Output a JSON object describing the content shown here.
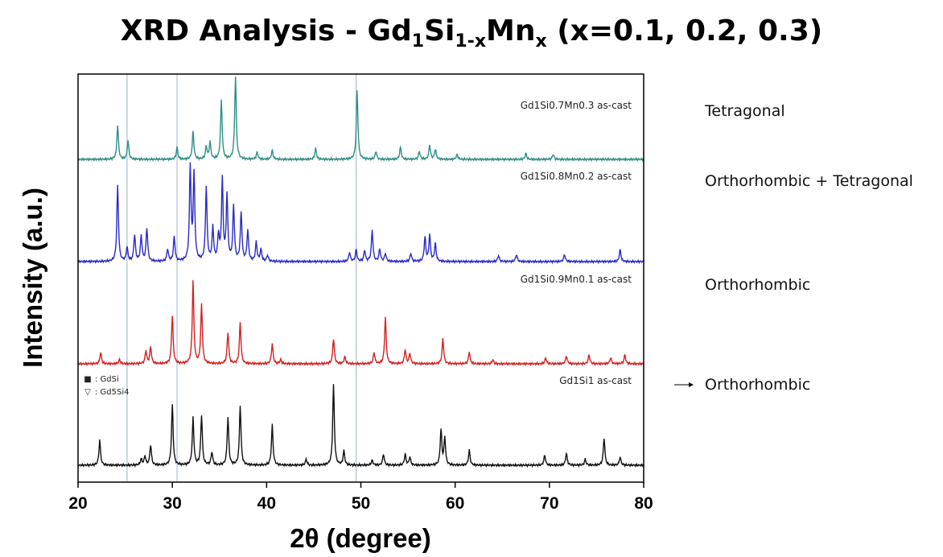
{
  "title": {
    "prefix": "XRD Analysis - Gd",
    "sub1": "1",
    "mid1": "Si",
    "sub2": "1-x",
    "mid2": "Mn",
    "sub3": "x",
    "suffix": " (x=0.1, 0.2, 0.3)"
  },
  "chart_data": {
    "type": "line",
    "xlabel": "2θ (degree)",
    "ylabel": "Intensity (a.u.)",
    "xlim": [
      20,
      80
    ],
    "xticks": [
      20,
      30,
      40,
      50,
      60,
      70,
      80
    ],
    "reference_lines_x": [
      25.2,
      30.5,
      49.5
    ],
    "legend": [
      {
        "marker": "■",
        "label": ": GdSi"
      },
      {
        "marker": "▽",
        "label": ": Gd5Si4"
      }
    ],
    "series": [
      {
        "name": "Gd1Si0.7Mn0.3 as-cast",
        "phase": "Tetragonal",
        "color": "#2e8f86",
        "peaks": [
          [
            24.2,
            0.33
          ],
          [
            25.3,
            0.18
          ],
          [
            30.5,
            0.12
          ],
          [
            32.2,
            0.28
          ],
          [
            33.6,
            0.13
          ],
          [
            34.0,
            0.17
          ],
          [
            35.2,
            0.58
          ],
          [
            36.7,
            0.82
          ],
          [
            39.0,
            0.07
          ],
          [
            40.6,
            0.09
          ],
          [
            45.2,
            0.11
          ],
          [
            49.6,
            0.68
          ],
          [
            51.6,
            0.08
          ],
          [
            54.2,
            0.12
          ],
          [
            56.2,
            0.08
          ],
          [
            57.3,
            0.14
          ],
          [
            57.9,
            0.1
          ],
          [
            60.2,
            0.05
          ],
          [
            67.5,
            0.06
          ],
          [
            70.4,
            0.05
          ]
        ]
      },
      {
        "name": "Gd1Si0.8Mn0.2 as-cast",
        "phase": "Orthorhombic + Tetragonal",
        "color": "#2a2ac8",
        "peaks": [
          [
            24.2,
            0.75
          ],
          [
            25.2,
            0.14
          ],
          [
            26.0,
            0.26
          ],
          [
            26.7,
            0.25
          ],
          [
            27.3,
            0.33
          ],
          [
            29.5,
            0.12
          ],
          [
            30.2,
            0.24
          ],
          [
            31.9,
            0.93
          ],
          [
            32.3,
            0.86
          ],
          [
            33.6,
            0.74
          ],
          [
            34.3,
            0.33
          ],
          [
            34.9,
            0.25
          ],
          [
            35.3,
            0.8
          ],
          [
            35.8,
            0.65
          ],
          [
            36.5,
            0.54
          ],
          [
            37.3,
            0.48
          ],
          [
            38.0,
            0.3
          ],
          [
            38.9,
            0.19
          ],
          [
            39.4,
            0.12
          ],
          [
            40.1,
            0.06
          ],
          [
            48.8,
            0.09
          ],
          [
            49.5,
            0.12
          ],
          [
            50.4,
            0.11
          ],
          [
            51.2,
            0.31
          ],
          [
            52.0,
            0.12
          ],
          [
            52.6,
            0.08
          ],
          [
            55.3,
            0.08
          ],
          [
            56.8,
            0.24
          ],
          [
            57.3,
            0.26
          ],
          [
            57.9,
            0.18
          ],
          [
            64.6,
            0.06
          ],
          [
            66.5,
            0.07
          ],
          [
            71.6,
            0.07
          ],
          [
            77.5,
            0.12
          ]
        ]
      },
      {
        "name": "Gd1Si0.9Mn0.1 as-cast",
        "phase": "Orthorhombic",
        "color": "#d42020",
        "peaks": [
          [
            22.4,
            0.11
          ],
          [
            24.4,
            0.04
          ],
          [
            27.2,
            0.13
          ],
          [
            27.7,
            0.17
          ],
          [
            30.0,
            0.48
          ],
          [
            32.2,
            0.82
          ],
          [
            33.1,
            0.58
          ],
          [
            35.9,
            0.31
          ],
          [
            37.2,
            0.41
          ],
          [
            40.6,
            0.2
          ],
          [
            41.5,
            0.04
          ],
          [
            47.1,
            0.25
          ],
          [
            48.3,
            0.07
          ],
          [
            51.4,
            0.11
          ],
          [
            52.6,
            0.46
          ],
          [
            54.7,
            0.14
          ],
          [
            55.2,
            0.1
          ],
          [
            58.7,
            0.25
          ],
          [
            61.5,
            0.12
          ],
          [
            64.0,
            0.04
          ],
          [
            69.6,
            0.06
          ],
          [
            71.8,
            0.08
          ],
          [
            74.2,
            0.09
          ],
          [
            76.5,
            0.06
          ],
          [
            78.0,
            0.09
          ]
        ]
      },
      {
        "name": "Gd1Si1 as-cast",
        "phase": "Orthorhombic",
        "color": "#111111",
        "peaks": [
          [
            22.3,
            0.25
          ],
          [
            26.7,
            0.06
          ],
          [
            27.1,
            0.09
          ],
          [
            27.7,
            0.2
          ],
          [
            30.0,
            0.6
          ],
          [
            32.2,
            0.47
          ],
          [
            33.1,
            0.49
          ],
          [
            34.2,
            0.13
          ],
          [
            35.9,
            0.47
          ],
          [
            37.2,
            0.59
          ],
          [
            40.6,
            0.4
          ],
          [
            44.2,
            0.06
          ],
          [
            47.1,
            0.8
          ],
          [
            48.2,
            0.14
          ],
          [
            51.2,
            0.05
          ],
          [
            52.4,
            0.11
          ],
          [
            54.7,
            0.11
          ],
          [
            55.2,
            0.08
          ],
          [
            58.5,
            0.35
          ],
          [
            58.9,
            0.27
          ],
          [
            61.5,
            0.15
          ],
          [
            69.5,
            0.1
          ],
          [
            71.8,
            0.12
          ],
          [
            73.8,
            0.06
          ],
          [
            75.8,
            0.27
          ],
          [
            77.5,
            0.08
          ]
        ]
      }
    ]
  }
}
